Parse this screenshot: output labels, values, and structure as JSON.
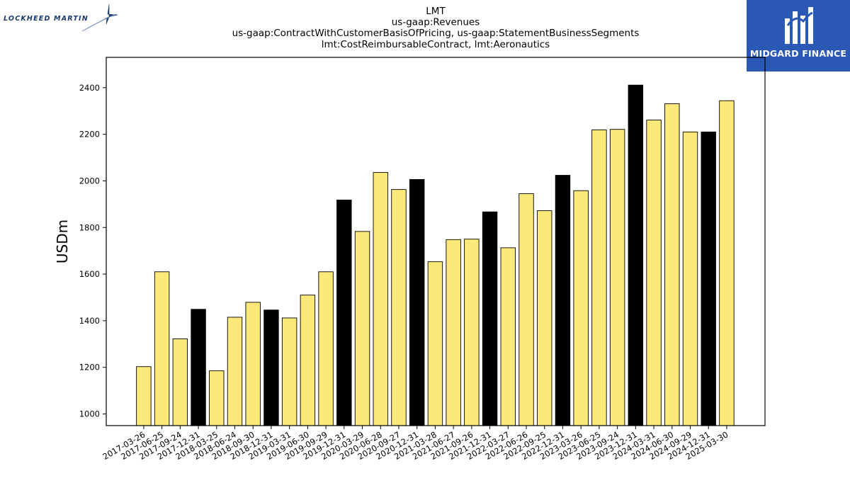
{
  "logos": {
    "left": "LOCKHEED MARTIN",
    "right": "MIDGARD FINANCE"
  },
  "colors": {
    "bar_fill": "#fde97a",
    "bar_highlight": "#000000",
    "edge": "#000000",
    "brand_blue": "#2b58b4",
    "lockheed_navy": "#1a3a6b"
  },
  "chart_data": {
    "type": "bar",
    "title_lines": [
      "LMT",
      "us-gaap:Revenues",
      "us-gaap:ContractWithCustomerBasisOfPricing, us-gaap:StatementBusinessSegments",
      "lmt:CostReimbursableContract, lmt:Aeronautics"
    ],
    "xlabel": "",
    "ylabel": "USDm",
    "ylim": [
      950,
      2530
    ],
    "yticks": [
      1000,
      1200,
      1400,
      1600,
      1800,
      2000,
      2200,
      2400
    ],
    "grid": false,
    "highlight_rule": "fiscal year-end (Q4) bars drawn in black",
    "categories": [
      "2017-03-26",
      "2017-06-25",
      "2017-09-24",
      "2017-12-31",
      "2018-03-25",
      "2018-06-24",
      "2018-09-30",
      "2018-12-31",
      "2019-03-31",
      "2019-06-30",
      "2019-09-29",
      "2019-12-31",
      "2020-03-29",
      "2020-06-28",
      "2020-09-27",
      "2020-12-31",
      "2021-03-28",
      "2021-06-27",
      "2021-09-26",
      "2021-12-31",
      "2022-03-27",
      "2022-06-26",
      "2022-09-25",
      "2022-12-31",
      "2023-03-26",
      "2023-06-25",
      "2023-09-24",
      "2023-12-31",
      "2024-03-31",
      "2024-06-30",
      "2024-09-29",
      "2024-12-31",
      "2025-03-30"
    ],
    "values": [
      1203,
      1610,
      1322,
      1449,
      1185,
      1415,
      1479,
      1446,
      1412,
      1510,
      1610,
      1918,
      1783,
      2036,
      1963,
      2006,
      1653,
      1748,
      1750,
      1867,
      1713,
      1945,
      1872,
      2024,
      1958,
      2219,
      2221,
      2411,
      2261,
      2331,
      2210,
      2210,
      2344
    ],
    "highlight": [
      false,
      false,
      false,
      true,
      false,
      false,
      false,
      true,
      false,
      false,
      false,
      true,
      false,
      false,
      false,
      true,
      false,
      false,
      false,
      true,
      false,
      false,
      false,
      true,
      false,
      false,
      false,
      true,
      false,
      false,
      false,
      true,
      false
    ]
  }
}
